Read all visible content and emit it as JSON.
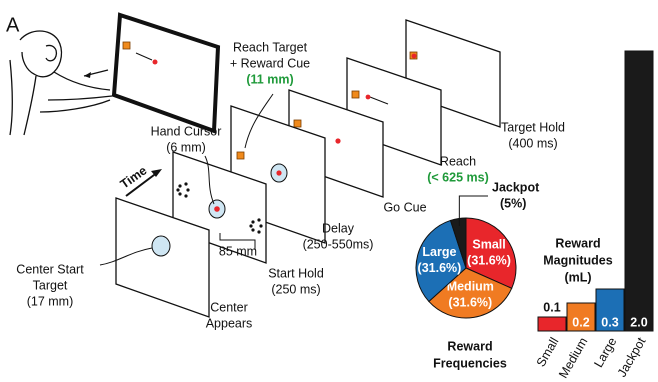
{
  "panel_label": "A",
  "labels": {
    "reach_target": [
      "Reach Target",
      "+ Reward Cue"
    ],
    "reach_target_size": "(11 mm)",
    "hand_cursor": [
      "Hand Cursor",
      "(6 mm)"
    ],
    "time": "Time",
    "distance": "85 mm",
    "center_start": [
      "Center Start",
      "Target",
      "(17 mm)"
    ],
    "center_appears": [
      "Center",
      "Appears"
    ],
    "start_hold": [
      "Start Hold",
      "(250 ms)"
    ],
    "delay": [
      "Delay",
      "(250-550ms)"
    ],
    "go_cue": "Go Cue",
    "reach": "Reach",
    "reach_time": "(< 625 ms)",
    "target_hold": [
      "Target Hold",
      "(400 ms)"
    ]
  },
  "chart_data": [
    {
      "type": "pie",
      "title": [
        "Reward",
        "Frequencies"
      ],
      "categories": [
        "Small",
        "Medium",
        "Large",
        "Jackpot"
      ],
      "values": [
        31.6,
        31.6,
        31.6,
        5
      ],
      "value_labels": [
        "(31.6%)",
        "(31.6%)",
        "(31.6%)",
        "(5%)"
      ],
      "colors": [
        "#e8262b",
        "#f07b22",
        "#1c6fb5",
        "#1a1a1a"
      ]
    },
    {
      "type": "bar",
      "title": [
        "Reward",
        "Magnitudes",
        "(mL)"
      ],
      "categories": [
        "Small",
        "Medium",
        "Large",
        "Jackpot"
      ],
      "values": [
        0.1,
        0.2,
        0.3,
        2.0
      ],
      "value_labels": [
        "0.1",
        "0.2",
        "0.3",
        "2.0"
      ],
      "colors": [
        "#e8262b",
        "#f07b22",
        "#1c6fb5",
        "#1a1a1a"
      ]
    }
  ]
}
